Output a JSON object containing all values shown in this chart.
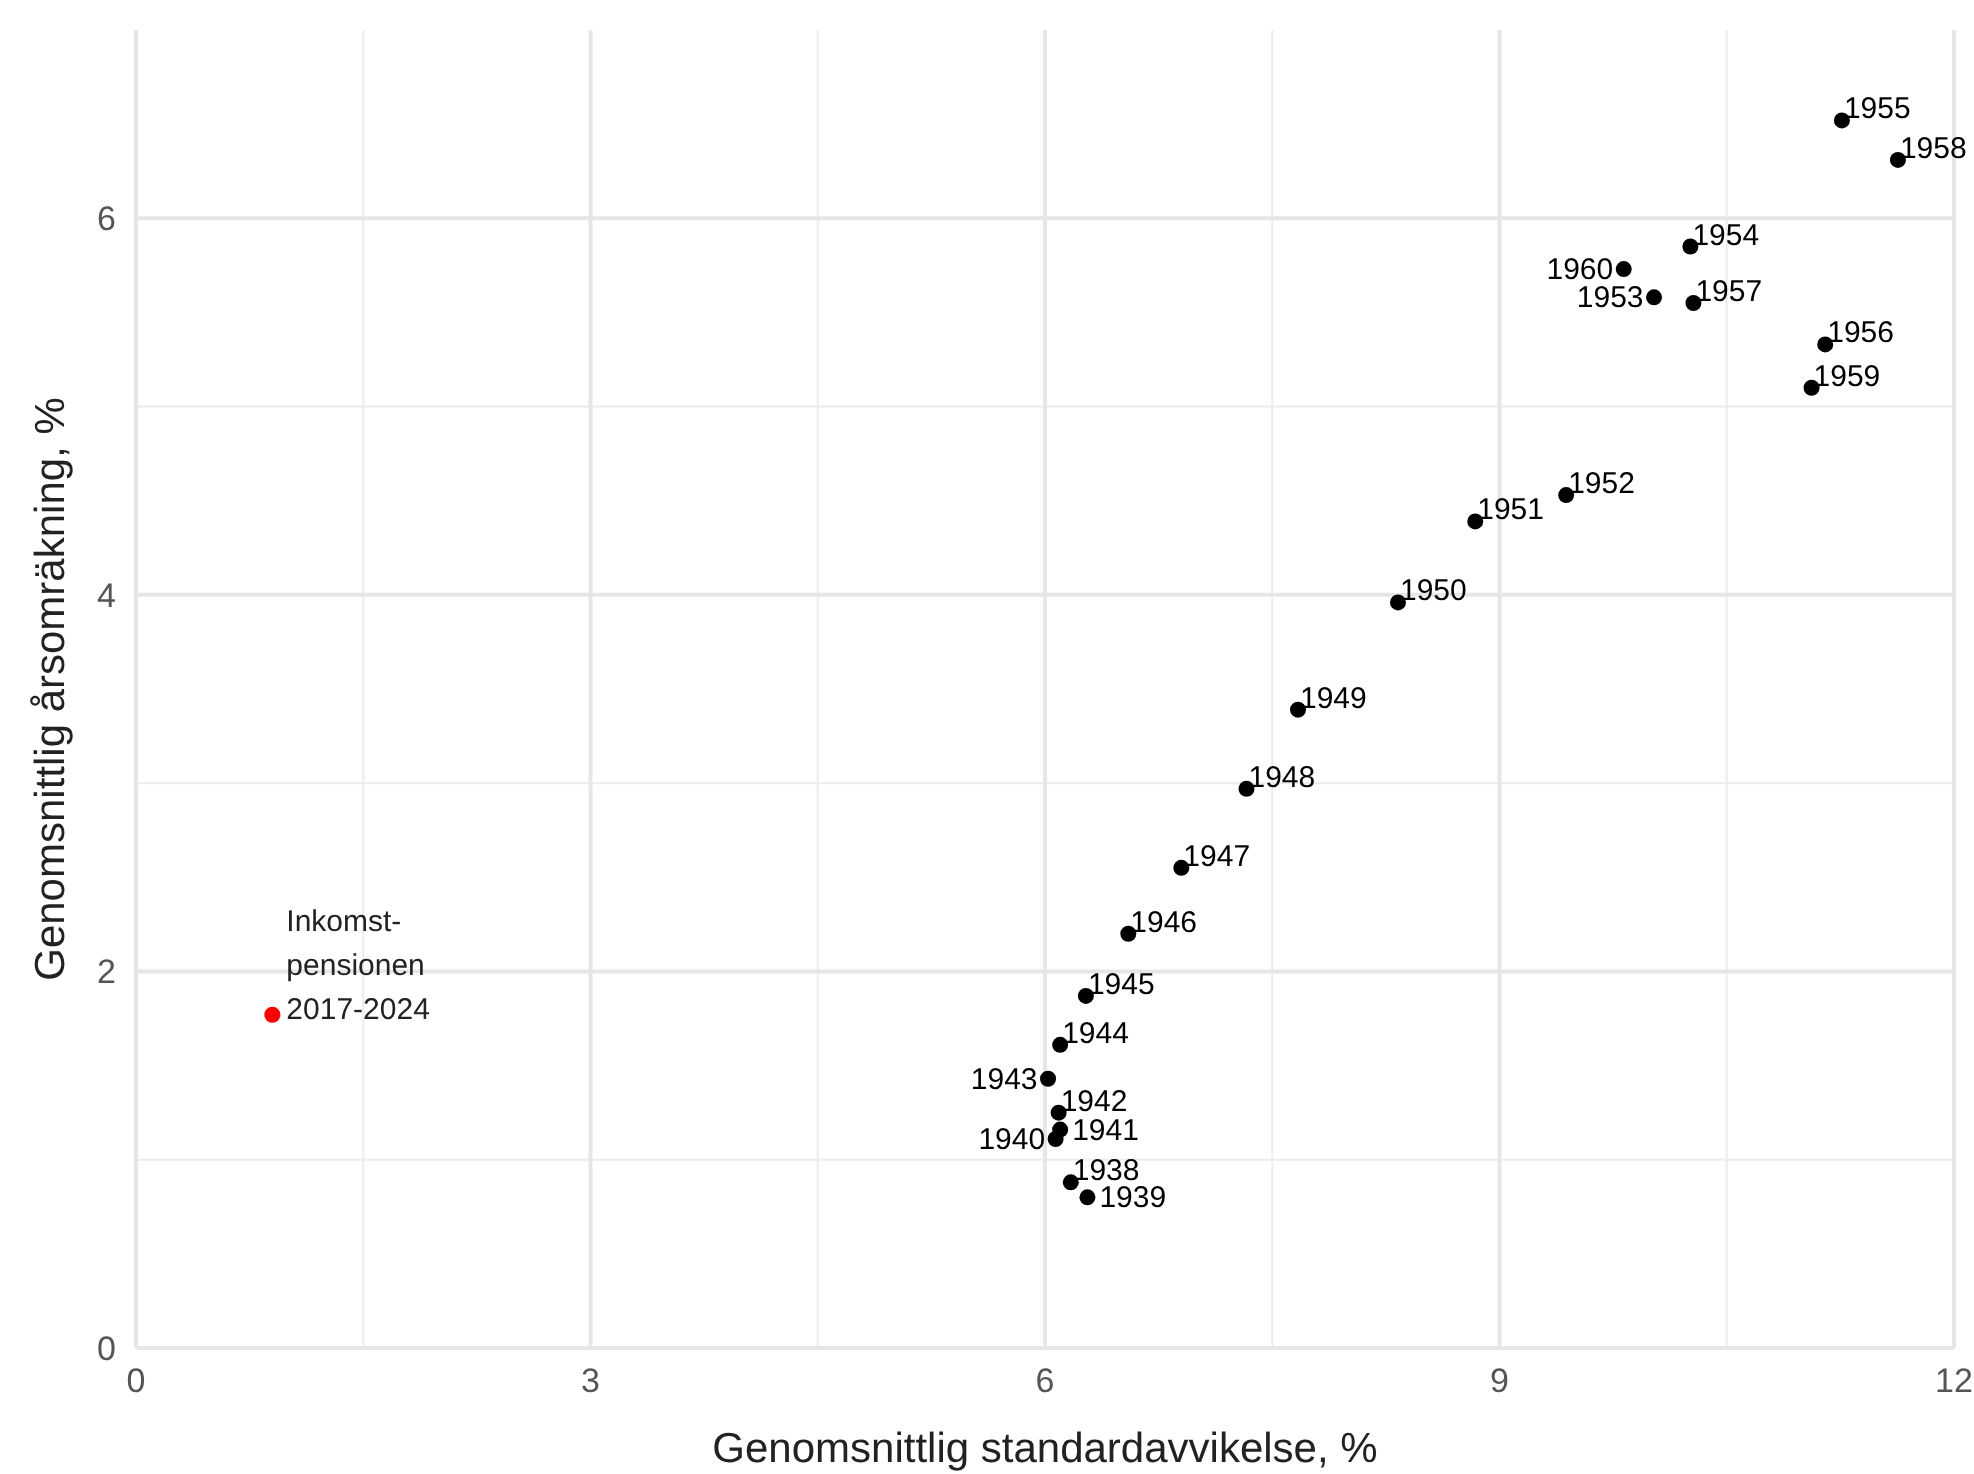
{
  "chart_data": {
    "type": "scatter",
    "xlabel": "Genomsnittlig standardavvikelse, %",
    "ylabel": "Genomsnittlig årsomräkning, %",
    "xlim": [
      0,
      12
    ],
    "ylim": [
      0,
      7
    ],
    "xticks": [
      0,
      3,
      6,
      9,
      12
    ],
    "yticks": [
      0,
      2,
      4,
      6
    ],
    "grid": true,
    "marker": "circle",
    "series": [
      {
        "color": "#000000",
        "x": [
          6.17,
          6.28,
          6.07,
          6.1,
          6.09,
          6.02,
          6.1,
          6.27,
          6.55,
          6.9,
          7.33,
          7.67,
          8.33,
          8.84,
          9.44,
          10.02,
          10.26,
          11.26,
          11.15,
          10.28,
          11.63,
          11.06,
          9.82
        ],
        "values": [
          0.88,
          0.8,
          1.11,
          1.16,
          1.25,
          1.43,
          1.61,
          1.87,
          2.2,
          2.55,
          2.97,
          3.39,
          3.96,
          4.39,
          4.53,
          5.58,
          5.85,
          6.52,
          5.33,
          5.55,
          6.31,
          5.1,
          5.73
        ]
      },
      {
        "name": "Inkomst-pensionen 2017-2024",
        "color": "#ff0000",
        "x": [
          0.9
        ],
        "values": [
          1.77
        ]
      }
    ],
    "annotations": [
      {
        "text": "1938",
        "x": 6.17,
        "y": 0.88
      },
      {
        "text": "1939",
        "x": 6.28,
        "y": 0.8
      },
      {
        "text": "1940",
        "x": 6.07,
        "y": 1.11
      },
      {
        "text": "1941",
        "x": 6.1,
        "y": 1.16
      },
      {
        "text": "1942",
        "x": 6.09,
        "y": 1.25
      },
      {
        "text": "1943",
        "x": 6.02,
        "y": 1.43
      },
      {
        "text": "1944",
        "x": 6.1,
        "y": 1.61
      },
      {
        "text": "1945",
        "x": 6.27,
        "y": 1.87
      },
      {
        "text": "1946",
        "x": 6.55,
        "y": 2.2
      },
      {
        "text": "1947",
        "x": 6.9,
        "y": 2.55
      },
      {
        "text": "1948",
        "x": 7.33,
        "y": 2.97
      },
      {
        "text": "1949",
        "x": 7.67,
        "y": 3.39
      },
      {
        "text": "1950",
        "x": 8.33,
        "y": 3.96
      },
      {
        "text": "1951",
        "x": 8.84,
        "y": 4.39
      },
      {
        "text": "1952",
        "x": 9.44,
        "y": 4.53
      },
      {
        "text": "1953",
        "x": 10.02,
        "y": 5.58
      },
      {
        "text": "1954",
        "x": 10.26,
        "y": 5.85
      },
      {
        "text": "1955",
        "x": 11.26,
        "y": 6.52
      },
      {
        "text": "1956",
        "x": 11.15,
        "y": 5.33
      },
      {
        "text": "1957",
        "x": 10.28,
        "y": 5.55
      },
      {
        "text": "1958",
        "x": 11.63,
        "y": 6.31
      },
      {
        "text": "1959",
        "x": 11.06,
        "y": 5.1
      },
      {
        "text": "1960",
        "x": 9.82,
        "y": 5.73
      }
    ]
  }
}
